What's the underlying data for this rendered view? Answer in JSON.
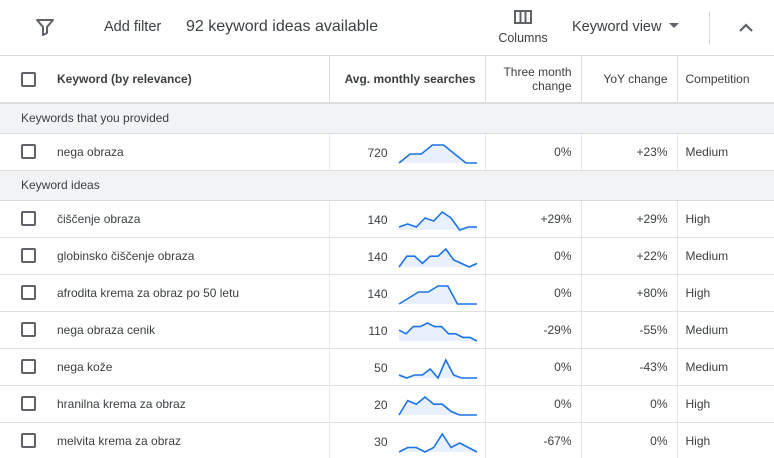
{
  "toolbar": {
    "add_filter": "Add filter",
    "ideas_count": "92 keyword ideas available",
    "columns_label": "Columns",
    "view_label": "Keyword view"
  },
  "table": {
    "headers": {
      "keyword": "Keyword (by relevance)",
      "avg_monthly": "Avg. monthly searches",
      "three_month_line1": "Three month",
      "three_month_line2": "change",
      "yoy": "YoY change",
      "competition": "Competition"
    },
    "provided_group_label": "Keywords that you provided",
    "ideas_group_label": "Keyword ideas",
    "trend_color": "#1a73e8",
    "trend_fill": "#e8f0fe",
    "provided": [
      {
        "keyword": "nega obraza",
        "avg": "720",
        "three": "0%",
        "yoy": "+23%",
        "competition": "Medium",
        "trend": [
          1,
          3,
          3,
          5,
          5,
          3,
          1,
          1
        ]
      }
    ],
    "ideas": [
      {
        "keyword": "čiščenje obraza",
        "avg": "140",
        "three": "+29%",
        "yoy": "+29%",
        "competition": "High",
        "trend": [
          2,
          3,
          2,
          5,
          4,
          7,
          5,
          1,
          2,
          2
        ]
      },
      {
        "keyword": "globinsko čiščenje obraza",
        "avg": "140",
        "three": "0%",
        "yoy": "+22%",
        "competition": "Medium",
        "trend": [
          1,
          4,
          4,
          2,
          4,
          4,
          6,
          3,
          2,
          1,
          2
        ]
      },
      {
        "keyword": "afrodita krema za obraz po 50 letu",
        "avg": "140",
        "three": "0%",
        "yoy": "+80%",
        "competition": "High",
        "trend": [
          1,
          2,
          3,
          3,
          4,
          4,
          1,
          1,
          1
        ]
      },
      {
        "keyword": "nega obraza cenik",
        "avg": "110",
        "three": "-29%",
        "yoy": "-55%",
        "competition": "Medium",
        "trend": [
          4,
          3,
          5,
          5,
          6,
          5,
          5,
          3,
          3,
          2,
          2,
          1
        ]
      },
      {
        "keyword": "nega kože",
        "avg": "50",
        "three": "0%",
        "yoy": "-43%",
        "competition": "Medium",
        "trend": [
          2,
          1,
          2,
          2,
          4,
          1,
          7,
          2,
          1,
          1,
          1
        ]
      },
      {
        "keyword": "hranilna krema za obraz",
        "avg": "20",
        "three": "0%",
        "yoy": "0%",
        "competition": "High",
        "trend": [
          1,
          5,
          4,
          6,
          4,
          4,
          2,
          1,
          1,
          1
        ]
      },
      {
        "keyword": "melvita krema za obraz",
        "avg": "30",
        "three": "-67%",
        "yoy": "0%",
        "competition": "High",
        "trend": [
          1,
          2,
          2,
          1,
          2,
          5,
          2,
          3,
          2,
          1
        ]
      }
    ]
  },
  "icons": {
    "filter": "filter-icon",
    "columns": "columns-icon",
    "caret": "caret-down-icon",
    "collapse": "chevron-up-icon"
  }
}
